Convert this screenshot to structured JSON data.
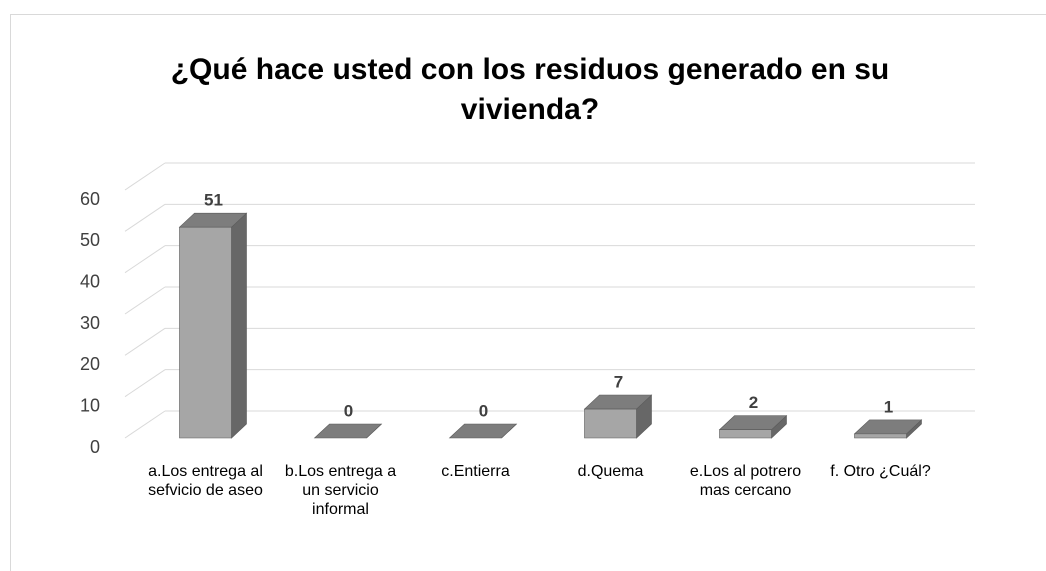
{
  "chart_data": {
    "type": "bar3d",
    "title": "¿Qué hace usted con los residuos generado en su vivienda?",
    "categories": [
      "a.Los entrega al sefvicio de aseo",
      "b.Los entrega a un servicio informal",
      "c.Entierra",
      "d.Quema",
      "e.Los al potrero mas cercano",
      "f. Otro ¿Cuál?"
    ],
    "values": [
      51,
      0,
      0,
      7,
      2,
      1
    ],
    "color": "#a6a6a6",
    "ylim": [
      0,
      60
    ],
    "yticks": [
      0,
      10,
      20,
      30,
      40,
      50,
      60
    ],
    "grid": true
  }
}
